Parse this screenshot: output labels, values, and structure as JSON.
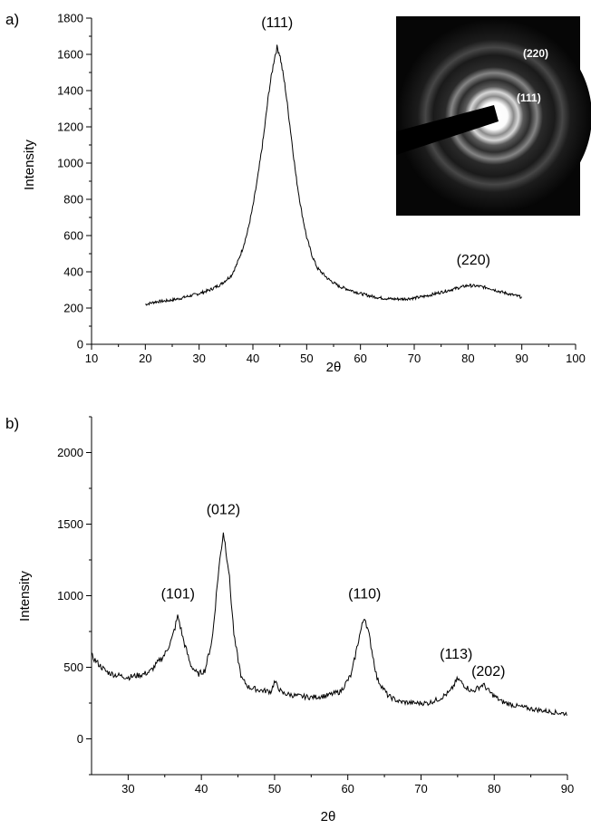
{
  "chart_data": [
    {
      "type": "line",
      "panel_label": "a)",
      "xlabel": "2θ",
      "ylabel": "Intensity",
      "xlim": [
        10,
        100
      ],
      "ylim": [
        0,
        1800
      ],
      "x_ticks": [
        10,
        20,
        30,
        40,
        50,
        60,
        70,
        80,
        90,
        100
      ],
      "y_ticks": [
        0,
        200,
        400,
        600,
        800,
        1000,
        1200,
        1400,
        1600,
        1800
      ],
      "grid": false,
      "line_color": "#000000",
      "series": [
        {
          "x": [
            20,
            22,
            24,
            26,
            28,
            30,
            32,
            34,
            36,
            37,
            38,
            39,
            40,
            41,
            42,
            43,
            44,
            44.5,
            45,
            46,
            47,
            48,
            49,
            50,
            51,
            52,
            54,
            56,
            58,
            60,
            62,
            64,
            66,
            68,
            70,
            72,
            74,
            76,
            78,
            80,
            82,
            84,
            86,
            88,
            90
          ],
          "y": [
            220,
            235,
            240,
            250,
            265,
            280,
            300,
            330,
            380,
            440,
            520,
            620,
            760,
            940,
            1150,
            1400,
            1580,
            1640,
            1600,
            1420,
            1180,
            930,
            740,
            590,
            490,
            420,
            360,
            320,
            300,
            280,
            265,
            255,
            250,
            250,
            255,
            265,
            280,
            295,
            310,
            325,
            320,
            310,
            290,
            275,
            260
          ]
        }
      ],
      "annotations": [
        {
          "text": "(111)",
          "x": 44.5,
          "y": 1750
        },
        {
          "text": "(220)",
          "x": 81,
          "y": 440
        }
      ],
      "inset": {
        "description_type": "diffraction-pattern-image",
        "labels": [
          "(220)",
          "(111)"
        ]
      }
    },
    {
      "type": "line",
      "panel_label": "b)",
      "xlabel": "2θ",
      "ylabel": "Intensity",
      "xlim": [
        25,
        90
      ],
      "ylim": [
        -250,
        2250
      ],
      "x_ticks": [
        30,
        40,
        50,
        60,
        70,
        80,
        90
      ],
      "y_ticks": [
        0,
        500,
        1000,
        1500,
        2000
      ],
      "grid": false,
      "line_color": "#000000",
      "series": [
        {
          "x": [
            25,
            26,
            27,
            28,
            29,
            30,
            31,
            32,
            33,
            34,
            35,
            36,
            36.8,
            37.5,
            38.5,
            39.5,
            40.5,
            41.5,
            42.3,
            43,
            43.7,
            44.5,
            45.5,
            46.5,
            48,
            49.5,
            50,
            51,
            53,
            55,
            57,
            59,
            60.5,
            61.5,
            62.3,
            63,
            64,
            65.5,
            67,
            69,
            71,
            72.5,
            74,
            75,
            76,
            77,
            78.5,
            79.5,
            81,
            83,
            85,
            87,
            89,
            90
          ],
          "y": [
            580,
            520,
            470,
            450,
            440,
            430,
            440,
            450,
            470,
            530,
            590,
            700,
            860,
            700,
            520,
            450,
            480,
            700,
            1150,
            1450,
            1200,
            700,
            420,
            360,
            340,
            330,
            400,
            320,
            300,
            290,
            300,
            330,
            450,
            700,
            860,
            700,
            420,
            300,
            260,
            250,
            250,
            280,
            330,
            420,
            370,
            330,
            380,
            320,
            260,
            230,
            210,
            195,
            180,
            175
          ]
        }
      ],
      "annotations": [
        {
          "text": "(101)",
          "x": 36.8,
          "y": 980
        },
        {
          "text": "(012)",
          "x": 43,
          "y": 1570
        },
        {
          "text": "(110)",
          "x": 62.3,
          "y": 980
        },
        {
          "text": "(113)",
          "x": 74.8,
          "y": 560
        },
        {
          "text": "(202)",
          "x": 79.2,
          "y": 440
        }
      ]
    }
  ]
}
